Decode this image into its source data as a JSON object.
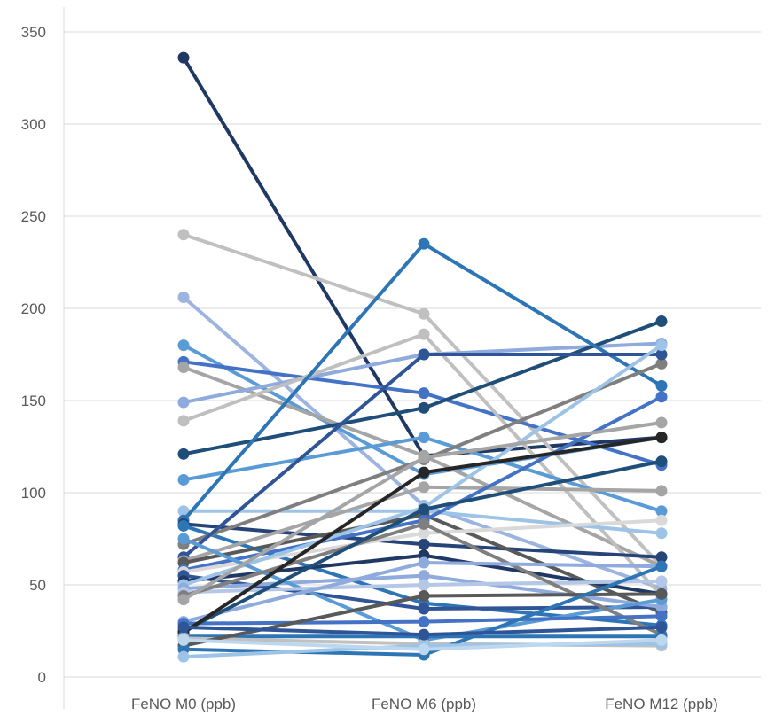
{
  "chart_data": {
    "type": "line",
    "categories": [
      "FeNO M0 (ppb)",
      "FeNO M6 (ppb)",
      "FeNO M12 (ppb)"
    ],
    "ylim": [
      0,
      350
    ],
    "yticks": [
      0,
      50,
      100,
      150,
      200,
      250,
      300,
      350
    ],
    "grid": true,
    "legend": "none",
    "series": [
      {
        "color": "#1f3864",
        "values": [
          336,
          120,
          130
        ]
      },
      {
        "color": "#c0c0c0",
        "values": [
          240,
          197,
          60
        ]
      },
      {
        "color": "#9db3e0",
        "values": [
          206,
          93,
          48
        ]
      },
      {
        "color": "#5b9bd5",
        "values": [
          180,
          110,
          130
        ]
      },
      {
        "color": "#4472c4",
        "values": [
          171,
          154,
          115
        ]
      },
      {
        "color": "#a5a5a5",
        "values": [
          168,
          120,
          60
        ]
      },
      {
        "color": "#8faadc",
        "values": [
          149,
          175,
          181
        ]
      },
      {
        "color": "#bfbfbf",
        "values": [
          139,
          186,
          44
        ]
      },
      {
        "color": "#1f4e79",
        "values": [
          121,
          146,
          193
        ]
      },
      {
        "color": "#5b9bd5",
        "values": [
          107,
          130,
          90
        ]
      },
      {
        "color": "#9dc3e6",
        "values": [
          90,
          90,
          78
        ]
      },
      {
        "color": "#2e75b6",
        "values": [
          85,
          235,
          158
        ]
      },
      {
        "color": "#264478",
        "values": [
          83,
          72,
          65
        ]
      },
      {
        "color": "#2e75b6",
        "values": [
          82,
          40,
          28
        ]
      },
      {
        "color": "#7f7f7f",
        "values": [
          72,
          118,
          170
        ]
      },
      {
        "color": "#2f5597",
        "values": [
          65,
          175,
          175
        ]
      },
      {
        "color": "#a5a5a5",
        "values": [
          63,
          103,
          101
        ]
      },
      {
        "color": "#595959",
        "values": [
          62,
          88,
          35
        ]
      },
      {
        "color": "#4472c4",
        "values": [
          58,
          85,
          152
        ]
      },
      {
        "color": "#d9d9d9",
        "values": [
          57,
          78,
          85
        ]
      },
      {
        "color": "#305496",
        "values": [
          55,
          37,
          38
        ]
      },
      {
        "color": "#203864",
        "values": [
          52,
          66,
          45
        ]
      },
      {
        "color": "#9dc3e6",
        "values": [
          50,
          92,
          180
        ]
      },
      {
        "color": "#8faadc",
        "values": [
          48,
          55,
          38
        ]
      },
      {
        "color": "#5b9bd5",
        "values": [
          75,
          20,
          42
        ]
      },
      {
        "color": "#b4c7e7",
        "values": [
          46,
          50,
          52
        ]
      },
      {
        "color": "#7f7f7f",
        "values": [
          44,
          83,
          23
        ]
      },
      {
        "color": "#a5a5a5",
        "values": [
          42,
          119,
          138
        ]
      },
      {
        "color": "#8faadc",
        "values": [
          30,
          62,
          60
        ]
      },
      {
        "color": "#4472c4",
        "values": [
          29,
          30,
          33
        ]
      },
      {
        "color": "#1f4e79",
        "values": [
          25,
          91,
          117
        ]
      },
      {
        "color": "#262626",
        "values": [
          24,
          111,
          130
        ]
      },
      {
        "color": "#2e75b6",
        "values": [
          22,
          22,
          22
        ]
      },
      {
        "color": "#c0c0c0",
        "values": [
          21,
          18,
          17
        ]
      },
      {
        "color": "#595959",
        "values": [
          17,
          44,
          45
        ]
      },
      {
        "color": "#2e75b6",
        "values": [
          15,
          12,
          60
        ]
      },
      {
        "color": "#9dc3e6",
        "values": [
          11,
          17,
          18
        ]
      },
      {
        "color": "#bdd7ee",
        "values": [
          20,
          15,
          20
        ]
      },
      {
        "color": "#2f5597",
        "values": [
          27,
          23,
          27
        ]
      }
    ]
  }
}
